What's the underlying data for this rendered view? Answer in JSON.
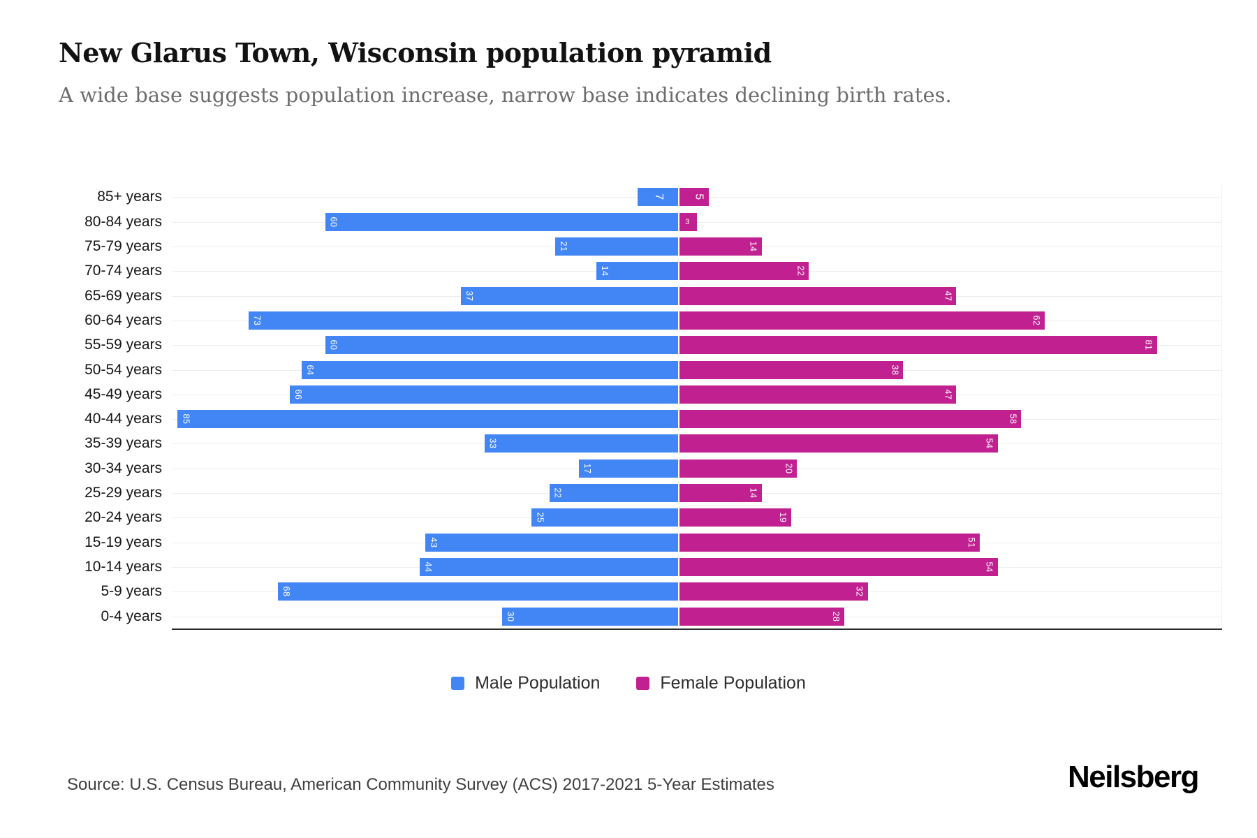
{
  "header": {
    "title": "New Glarus Town, Wisconsin population pyramid",
    "subtitle": "A wide base suggests population increase, narrow base indicates declining birth rates."
  },
  "chart_data": {
    "type": "bar",
    "variant": "population-pyramid",
    "categories": [
      "85+ years",
      "80-84 years",
      "75-79 years",
      "70-74 years",
      "65-69 years",
      "60-64 years",
      "55-59 years",
      "50-54 years",
      "45-49 years",
      "40-44 years",
      "35-39 years",
      "30-34 years",
      "25-29 years",
      "20-24 years",
      "15-19 years",
      "10-14 years",
      "5-9 years",
      "0-4 years"
    ],
    "series": [
      {
        "name": "Male Population",
        "side": "left",
        "color": "#4285F4",
        "values": [
          7,
          60,
          21,
          14,
          37,
          73,
          60,
          64,
          66,
          85,
          33,
          17,
          22,
          25,
          43,
          44,
          68,
          30
        ]
      },
      {
        "name": "Female Population",
        "side": "right",
        "color": "#C12190",
        "values": [
          5,
          3,
          14,
          22,
          47,
          62,
          81,
          38,
          47,
          58,
          54,
          20,
          14,
          19,
          51,
          54,
          32,
          28
        ]
      }
    ],
    "value_axis": {
      "max_per_side": 86,
      "center_position_pct": 48.3
    },
    "grid": "light horizontal line per row, dark bottom axis line",
    "bar_labels": "white value at bar end, rotated 90deg",
    "legend_position": "bottom-center",
    "title": "New Glarus Town, Wisconsin population pyramid"
  },
  "legend": {
    "items": [
      {
        "label": "Male Population",
        "color": "#4285F4"
      },
      {
        "label": "Female Population",
        "color": "#C12190"
      }
    ]
  },
  "footer": {
    "source": "Source: U.S. Census Bureau, American Community Survey (ACS) 2017-2021 5-Year Estimates",
    "brand": "Neilsberg"
  }
}
